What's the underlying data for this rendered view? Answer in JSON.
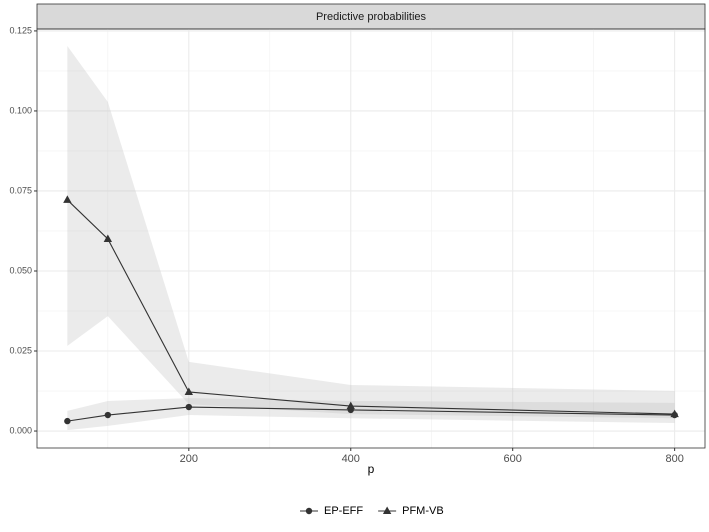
{
  "chart_data": {
    "type": "line",
    "title": "Predictive probabilities",
    "x_label": "p",
    "x": [
      50,
      100,
      200,
      400,
      800
    ],
    "series": [
      {
        "name": "EP-EFF",
        "color": "#333333",
        "shape": "circle",
        "values": [
          0.0031,
          0.005,
          0.0075,
          0.0066,
          0.005
        ],
        "lower": [
          0.0003,
          0.0016,
          0.005,
          0.004,
          0.0025
        ],
        "upper": [
          0.0063,
          0.0094,
          0.0103,
          0.0094,
          0.0088
        ]
      },
      {
        "name": "PFM-VB",
        "color": "#333333",
        "shape": "triangle",
        "values": [
          0.0722,
          0.06,
          0.0122,
          0.0078,
          0.0053
        ],
        "lower": [
          0.0266,
          0.0359,
          0.0084,
          0.0053,
          0.004
        ],
        "upper": [
          0.1203,
          0.1028,
          0.0216,
          0.0144,
          0.0125
        ]
      }
    ],
    "ribbon_color": "#bdbdbd",
    "xlim": [
      12.5,
      837.5
    ],
    "ylim": [
      -0.0053,
      0.1256
    ],
    "xticks": [
      200,
      400,
      600,
      800
    ],
    "minor_xticks": [
      100,
      300,
      500,
      700
    ],
    "yticks": [
      {
        "value": 0,
        "label": "0.000"
      },
      {
        "value": 0.025,
        "label": "0.025"
      },
      {
        "value": 0.05,
        "label": "0.050"
      },
      {
        "value": 0.075,
        "label": "0.075"
      },
      {
        "value": 0.1,
        "label": "0.100"
      },
      {
        "value": 0.125,
        "label": "0.125"
      }
    ],
    "minor_yticks": [
      0.0125,
      0.0375,
      0.0625,
      0.0875,
      0.1125
    ],
    "grid": true,
    "legend": "bottom"
  }
}
